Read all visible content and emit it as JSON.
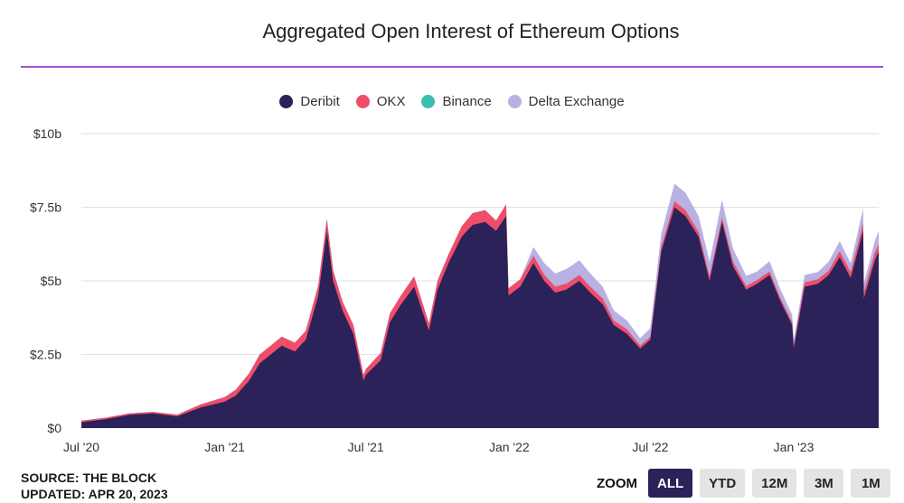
{
  "title": "Aggregated Open Interest of Ethereum Options",
  "legend": [
    {
      "name": "Deribit",
      "color": "#2b2259"
    },
    {
      "name": "OKX",
      "color": "#f04d6a"
    },
    {
      "name": "Binance",
      "color": "#3bbfad"
    },
    {
      "name": "Delta Exchange",
      "color": "#b9b0e4"
    }
  ],
  "source": {
    "line1": "SOURCE: THE BLOCK",
    "line2": "UPDATED: APR 20, 2023"
  },
  "zoom": {
    "label": "ZOOM",
    "buttons": [
      {
        "label": "ALL",
        "active": true
      },
      {
        "label": "YTD",
        "active": false
      },
      {
        "label": "12M",
        "active": false
      },
      {
        "label": "3M",
        "active": false
      },
      {
        "label": "1M",
        "active": false
      }
    ]
  },
  "chart_data": {
    "type": "area",
    "stacked": true,
    "title": "Aggregated Open Interest of Ethereum Options",
    "x_ticks": [
      "Jul '20",
      "Jan '21",
      "Jul '21",
      "Jan '22",
      "Jul '22",
      "Jan '23"
    ],
    "y_ticks": [
      "$0",
      "$2.5b",
      "$5b",
      "$7.5b",
      "$10b"
    ],
    "ylim": [
      0,
      10
    ],
    "y_unit": "billion USD",
    "grid": true,
    "legend_position": "top-center",
    "x": [
      "2020-07-01",
      "2020-08-01",
      "2020-09-01",
      "2020-10-01",
      "2020-11-01",
      "2020-12-01",
      "2021-01-01",
      "2021-01-15",
      "2021-02-01",
      "2021-02-15",
      "2021-03-01",
      "2021-03-15",
      "2021-04-01",
      "2021-04-15",
      "2021-05-01",
      "2021-05-12",
      "2021-05-20",
      "2021-06-01",
      "2021-06-15",
      "2021-06-28",
      "2021-07-01",
      "2021-07-20",
      "2021-08-01",
      "2021-08-15",
      "2021-09-01",
      "2021-09-20",
      "2021-10-01",
      "2021-10-15",
      "2021-11-01",
      "2021-11-15",
      "2021-12-01",
      "2021-12-15",
      "2021-12-28",
      "2021-12-31",
      "2022-01-15",
      "2022-02-01",
      "2022-02-15",
      "2022-03-01",
      "2022-03-15",
      "2022-04-01",
      "2022-04-15",
      "2022-05-01",
      "2022-05-15",
      "2022-06-01",
      "2022-06-18",
      "2022-07-01",
      "2022-07-15",
      "2022-08-01",
      "2022-08-15",
      "2022-09-01",
      "2022-09-15",
      "2022-10-01",
      "2022-10-15",
      "2022-11-01",
      "2022-11-15",
      "2022-12-01",
      "2022-12-15",
      "2022-12-30",
      "2023-01-01",
      "2023-01-15",
      "2023-02-01",
      "2023-02-15",
      "2023-03-01",
      "2023-03-15",
      "2023-03-31",
      "2023-04-01",
      "2023-04-15",
      "2023-04-20"
    ],
    "series": [
      {
        "name": "Deribit",
        "values": [
          0.2,
          0.3,
          0.45,
          0.5,
          0.4,
          0.7,
          0.9,
          1.1,
          1.6,
          2.2,
          2.5,
          2.8,
          2.6,
          3.0,
          4.5,
          6.7,
          5.0,
          4.0,
          3.2,
          1.6,
          1.8,
          2.3,
          3.6,
          4.2,
          4.8,
          3.3,
          4.7,
          5.6,
          6.5,
          6.9,
          7.0,
          6.7,
          7.2,
          4.5,
          4.8,
          5.6,
          5.0,
          4.6,
          4.7,
          5.0,
          4.6,
          4.2,
          3.5,
          3.2,
          2.7,
          3.0,
          6.0,
          7.5,
          7.2,
          6.5,
          5.0,
          7.0,
          5.5,
          4.7,
          4.9,
          5.2,
          4.3,
          3.5,
          2.7,
          4.8,
          4.9,
          5.2,
          5.8,
          5.1,
          6.7,
          4.4,
          5.7,
          6.0
        ]
      },
      {
        "name": "OKX",
        "values": [
          0.05,
          0.05,
          0.05,
          0.05,
          0.05,
          0.1,
          0.15,
          0.2,
          0.25,
          0.3,
          0.3,
          0.3,
          0.3,
          0.3,
          0.35,
          0.4,
          0.35,
          0.3,
          0.3,
          0.2,
          0.2,
          0.25,
          0.3,
          0.3,
          0.35,
          0.25,
          0.3,
          0.3,
          0.35,
          0.4,
          0.4,
          0.35,
          0.4,
          0.25,
          0.25,
          0.25,
          0.2,
          0.2,
          0.2,
          0.2,
          0.2,
          0.2,
          0.15,
          0.15,
          0.1,
          0.1,
          0.15,
          0.2,
          0.2,
          0.15,
          0.15,
          0.15,
          0.15,
          0.12,
          0.12,
          0.12,
          0.1,
          0.1,
          0.1,
          0.15,
          0.15,
          0.15,
          0.2,
          0.2,
          0.25,
          0.2,
          0.25,
          0.25
        ]
      },
      {
        "name": "Binance",
        "values": [
          0,
          0,
          0,
          0,
          0,
          0,
          0,
          0,
          0,
          0,
          0,
          0,
          0,
          0,
          0,
          0,
          0,
          0,
          0,
          0,
          0,
          0,
          0,
          0,
          0,
          0,
          0,
          0,
          0,
          0,
          0,
          0,
          0,
          0,
          0,
          0,
          0,
          0,
          0,
          0,
          0,
          0,
          0,
          0,
          0,
          0,
          0,
          0,
          0,
          0,
          0,
          0,
          0,
          0,
          0,
          0,
          0,
          0,
          0,
          0,
          0,
          0,
          0,
          0,
          0,
          0,
          0,
          0
        ]
      },
      {
        "name": "Delta Exchange",
        "values": [
          0,
          0,
          0,
          0,
          0,
          0,
          0,
          0,
          0,
          0,
          0,
          0,
          0,
          0,
          0,
          0,
          0,
          0,
          0,
          0,
          0,
          0,
          0,
          0,
          0,
          0,
          0,
          0,
          0,
          0,
          0,
          0,
          0,
          0,
          0,
          0.3,
          0.4,
          0.45,
          0.5,
          0.5,
          0.45,
          0.4,
          0.35,
          0.3,
          0.25,
          0.3,
          0.45,
          0.6,
          0.6,
          0.55,
          0.5,
          0.6,
          0.45,
          0.35,
          0.3,
          0.35,
          0.3,
          0.25,
          0.2,
          0.25,
          0.25,
          0.3,
          0.35,
          0.3,
          0.5,
          0.3,
          0.4,
          0.45
        ]
      }
    ]
  }
}
